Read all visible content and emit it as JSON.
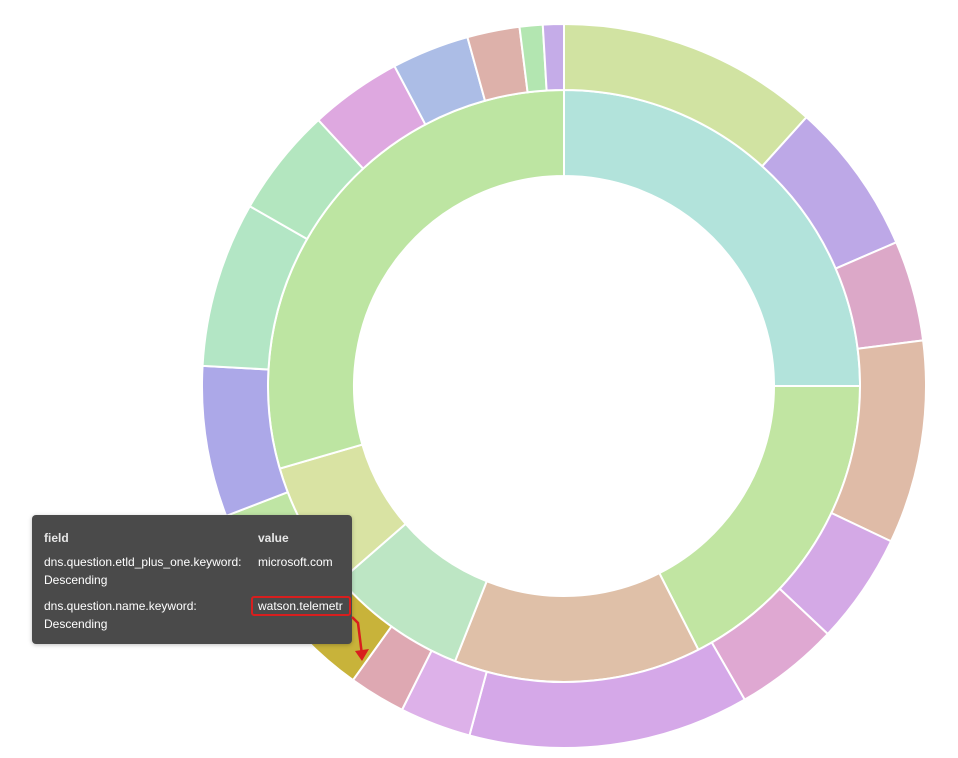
{
  "chart_data": {
    "type": "sunburst",
    "inner_ring": [
      {
        "value": 25.0,
        "color": "#b2e3db"
      },
      {
        "value": 17.5,
        "color": "#c1e5a2"
      },
      {
        "value": 13.5,
        "color": "#dfc0a8"
      },
      {
        "value": 7.6,
        "color": "#bde6c4"
      },
      {
        "value": 6.9,
        "color": "#d9e3a3"
      },
      {
        "value": 29.5,
        "color": "#bde5a2"
      }
    ],
    "outer_ring": [
      {
        "value": 12.5,
        "color": "#d1e3a2"
      },
      {
        "value": 7.3,
        "color": "#bda8e7"
      },
      {
        "value": 4.8,
        "color": "#dca8c8"
      },
      {
        "value": 9.7,
        "color": "#dfbba7"
      },
      {
        "value": 5.3,
        "color": "#d4a9e6"
      },
      {
        "value": 5.0,
        "color": "#dfa8d2"
      },
      {
        "value": 13.4,
        "color": "#d5a8e8"
      },
      {
        "value": 3.4,
        "color": "#ddb1e9"
      },
      {
        "value": 2.7,
        "color": "#dea8b2"
      },
      {
        "value": 3.0,
        "color": "#c8b33a"
      },
      {
        "value": 3.7,
        "color": "#e0d2b4"
      },
      {
        "value": 3.2,
        "color": "#bfe5a4"
      },
      {
        "value": 7.2,
        "color": "#aca8e8"
      },
      {
        "value": 7.9,
        "color": "#b3e6c5"
      },
      {
        "value": 5.2,
        "color": "#b3e6bf"
      },
      {
        "value": 4.4,
        "color": "#dea8e0"
      },
      {
        "value": 3.7,
        "color": "#acbde6"
      },
      {
        "value": 2.5,
        "color": "#ddb1aa"
      },
      {
        "value": 1.1,
        "color": "#b3e6b1"
      },
      {
        "value": 1.0,
        "color": "#c5ace8"
      }
    ]
  },
  "tooltip": {
    "header_field": "field",
    "header_value": "value",
    "rows": [
      {
        "field": "dns.question.etld_plus_one.keyword: Descending",
        "value": "microsoft.com"
      },
      {
        "field": " dns.question.name.keyword: Descending",
        "value": "watson.telemetr"
      }
    ],
    "highlight_color": "#d81e1e"
  }
}
